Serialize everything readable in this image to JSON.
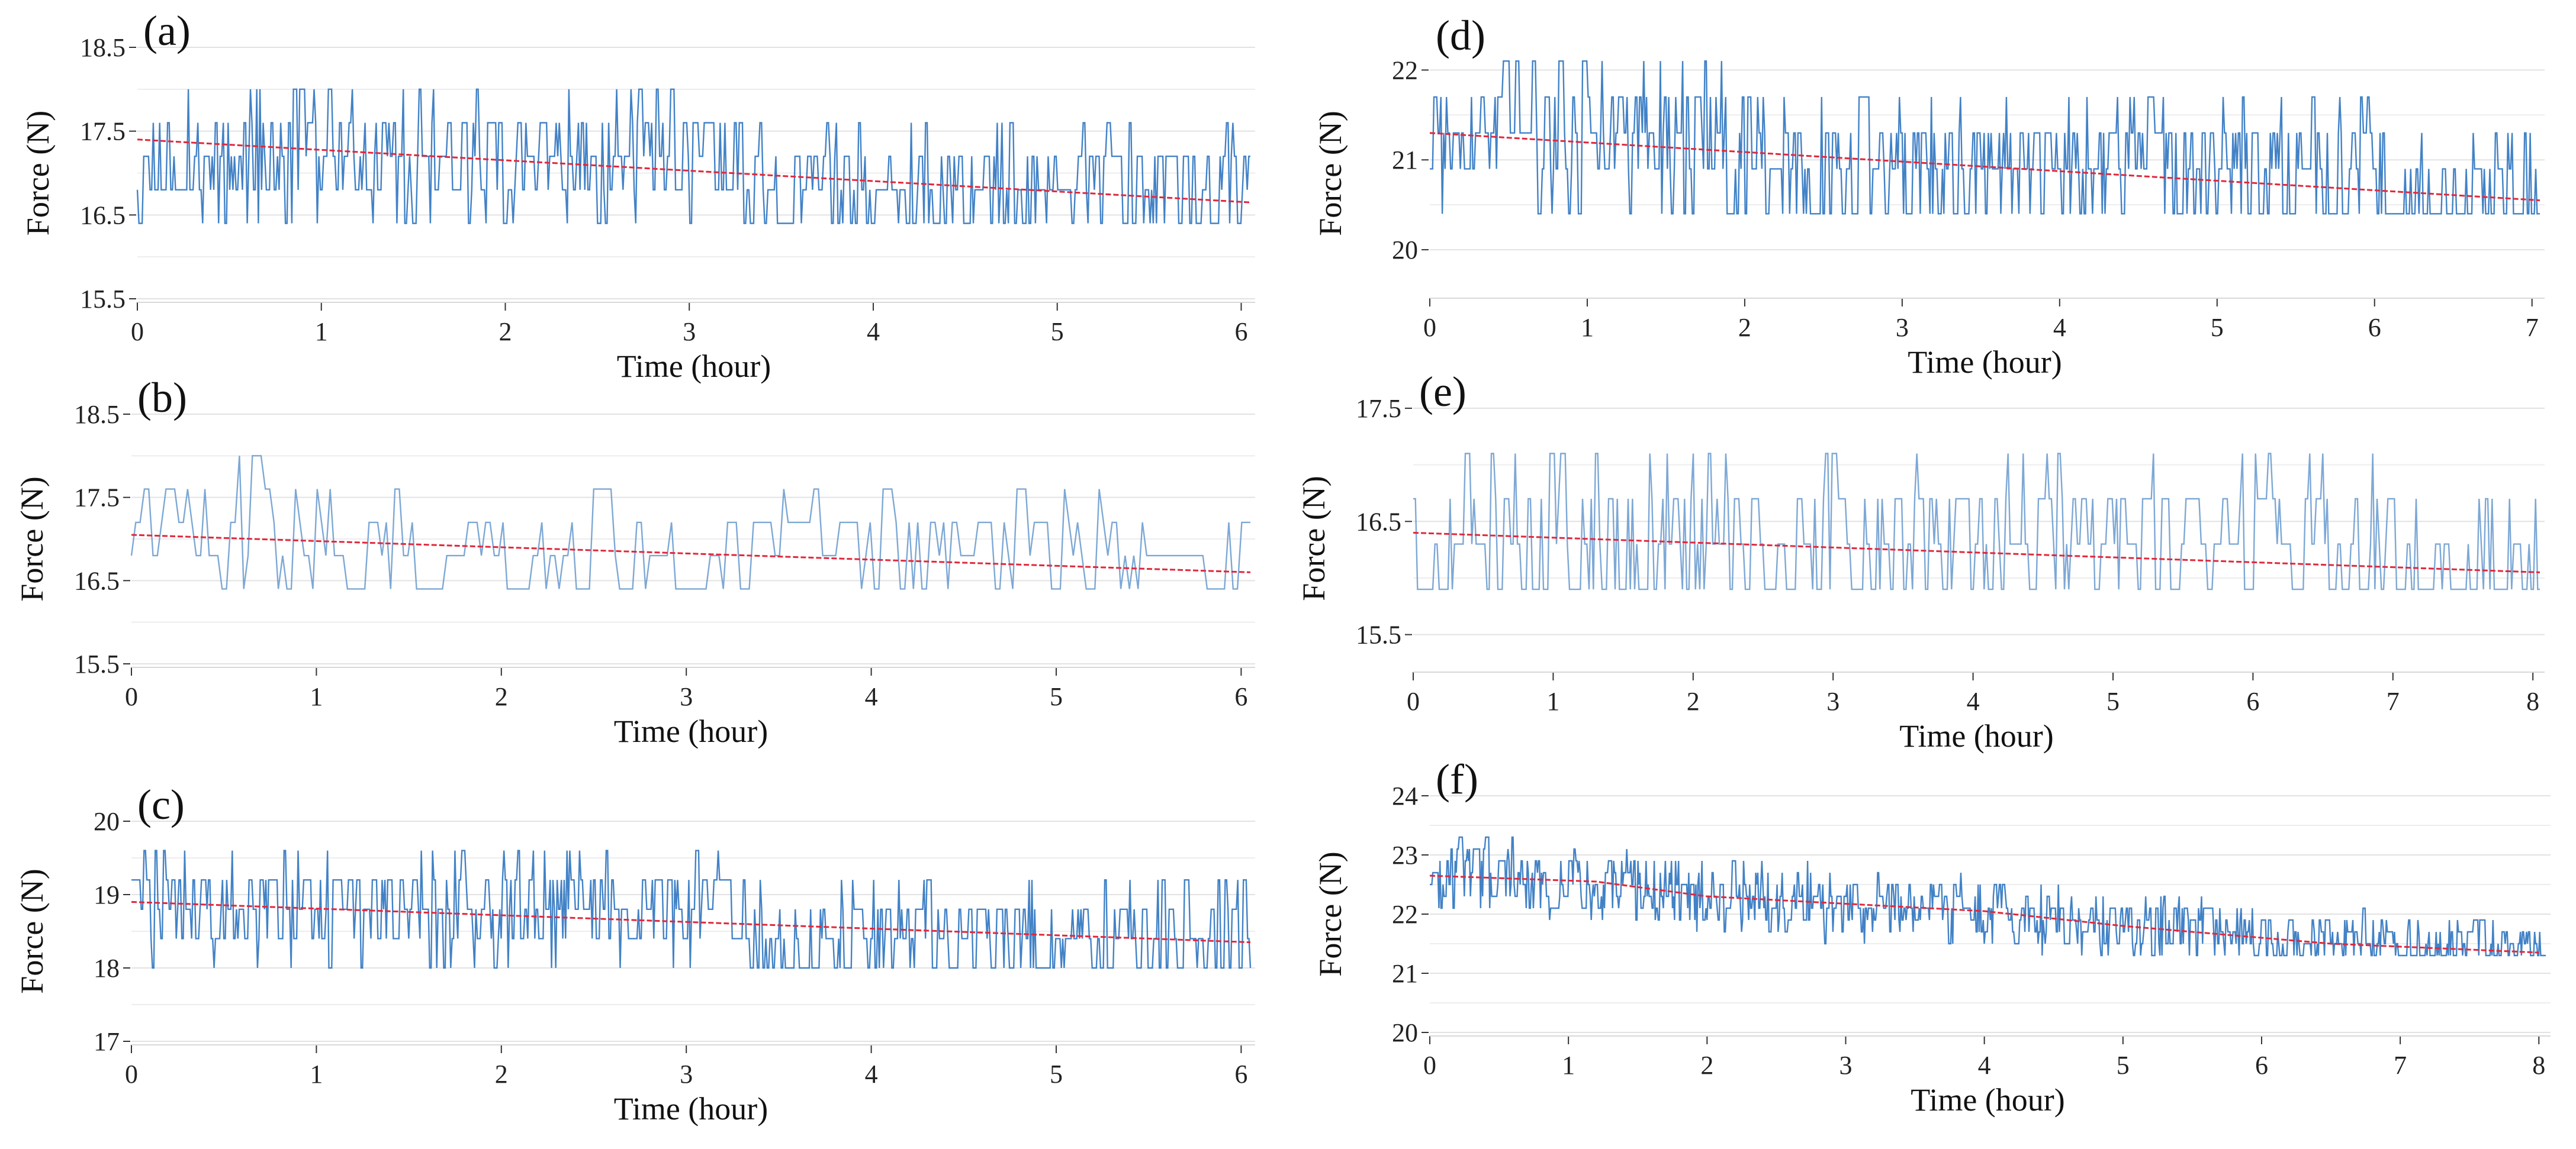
{
  "chart_data": [
    {
      "type": "line",
      "panel_label": "(a)",
      "xlabel": "Time (hour)",
      "ylabel": "Force (N)",
      "xlim": [
        0,
        6.05
      ],
      "ylim": [
        15.5,
        18.5
      ],
      "xticks": [
        0,
        1,
        2,
        3,
        4,
        5,
        6
      ],
      "yticks": [
        15.5,
        16.5,
        17.5,
        18.5
      ],
      "ytick_labels": [
        "15.5",
        "16.5",
        "17.5",
        "18.5"
      ],
      "grid": true,
      "series": [
        {
          "kind": "signal",
          "color": "#2e74c0",
          "noise": {
            "levels": [
              16.4,
              16.8,
              17.2,
              17.6,
              18.0
            ],
            "points": 700,
            "seed": 11
          }
        },
        {
          "kind": "trend",
          "color": "#e0283c",
          "x": [
            0,
            6.05
          ],
          "y": [
            17.4,
            16.65
          ]
        }
      ]
    },
    {
      "type": "line",
      "panel_label": "(b)",
      "xlabel": "Time (hour)",
      "ylabel": "Force (N)",
      "xlim": [
        0,
        6.05
      ],
      "ylim": [
        15.5,
        18.5
      ],
      "xticks": [
        0,
        1,
        2,
        3,
        4,
        5,
        6
      ],
      "yticks": [
        15.5,
        16.5,
        17.5,
        18.5
      ],
      "ytick_labels": [
        "15.5",
        "16.5",
        "17.5",
        "18.5"
      ],
      "grid": true,
      "series": [
        {
          "kind": "signal",
          "color": "#6f9fd0",
          "noise": {
            "levels": [
              16.4,
              16.8,
              17.2,
              17.6,
              18.0
            ],
            "points": 260,
            "seed": 23
          }
        },
        {
          "kind": "trend",
          "color": "#e0283c",
          "x": [
            0,
            6.05
          ],
          "y": [
            17.05,
            16.6
          ]
        }
      ]
    },
    {
      "type": "line",
      "panel_label": "(c)",
      "xlabel": "Time (hour)",
      "ylabel": "Force (N)",
      "xlim": [
        0,
        6.05
      ],
      "ylim": [
        17,
        20
      ],
      "xticks": [
        0,
        1,
        2,
        3,
        4,
        5,
        6
      ],
      "yticks": [
        17,
        18,
        19,
        20
      ],
      "ytick_labels": [
        "17",
        "18",
        "19",
        "20"
      ],
      "grid": true,
      "series": [
        {
          "kind": "signal",
          "color": "#2e74c0",
          "noise": {
            "levels": [
              18.0,
              18.4,
              18.8,
              19.2,
              19.6,
              20.0
            ],
            "points": 800,
            "seed": 37
          }
        },
        {
          "kind": "trend",
          "color": "#e0283c",
          "x": [
            0,
            6.05
          ],
          "y": [
            18.9,
            18.35
          ]
        }
      ]
    },
    {
      "type": "line",
      "panel_label": "(d)",
      "xlabel": "Time (hour)",
      "ylabel": "Force (N)",
      "xlim": [
        0,
        7.05
      ],
      "ylim": [
        19.5,
        22.2
      ],
      "xticks": [
        0,
        1,
        2,
        3,
        4,
        5,
        6,
        7
      ],
      "yticks": [
        20,
        21,
        22
      ],
      "ytick_labels": [
        "20",
        "21",
        "22"
      ],
      "grid": true,
      "series": [
        {
          "kind": "signal",
          "color": "#2e74c0",
          "noise": {
            "levels": [
              20.4,
              20.9,
              21.3,
              21.7,
              22.1
            ],
            "points": 800,
            "seed": 41
          }
        },
        {
          "kind": "trend",
          "color": "#e0283c",
          "x": [
            0,
            7.05
          ],
          "y": [
            21.3,
            20.55
          ]
        }
      ]
    },
    {
      "type": "line",
      "panel_label": "(e)",
      "xlabel": "Time (hour)",
      "ylabel": "Force (N)",
      "xlim": [
        0,
        8.05
      ],
      "ylim": [
        15.2,
        17.5
      ],
      "xticks": [
        0,
        1,
        2,
        3,
        4,
        5,
        6,
        7,
        8
      ],
      "yticks": [
        15.5,
        16.5,
        17.5
      ],
      "ytick_labels": [
        "15.5",
        "16.5",
        "17.5"
      ],
      "grid": true,
      "series": [
        {
          "kind": "signal",
          "color": "#6f9fd0",
          "noise": {
            "levels": [
              15.9,
              16.3,
              16.7,
              17.1
            ],
            "points": 520,
            "seed": 53
          }
        },
        {
          "kind": "trend",
          "color": "#e0283c",
          "x": [
            0,
            8.05
          ],
          "y": [
            16.4,
            16.05
          ]
        }
      ]
    },
    {
      "type": "line",
      "panel_label": "(f)",
      "xlabel": "Time (hour)",
      "ylabel": "Force (N)",
      "xlim": [
        0,
        8.05
      ],
      "ylim": [
        20,
        24
      ],
      "xticks": [
        0,
        1,
        2,
        3,
        4,
        5,
        6,
        7,
        8
      ],
      "yticks": [
        20,
        21,
        22,
        23,
        24
      ],
      "ytick_labels": [
        "20",
        "21",
        "22",
        "23",
        "24"
      ],
      "grid": true,
      "series": [
        {
          "kind": "signal",
          "color": "#2e74c0",
          "noise": {
            "levels": [
              21.3,
              21.5,
              21.7,
              21.9,
              22.1,
              22.3,
              22.5,
              22.7,
              22.9,
              23.1,
              23.3
            ],
            "points": 1100,
            "seed": 67,
            "track": [
              [
                0,
                22.65
              ],
              [
                1.2,
                22.55
              ],
              [
                2,
                22.3
              ],
              [
                4,
                22.05
              ],
              [
                5,
                21.8
              ],
              [
                6.5,
                21.5
              ],
              [
                8,
                21.35
              ]
            ]
          }
        },
        {
          "kind": "trend",
          "color": "#e0283c",
          "x": [
            0,
            1.2,
            2,
            4,
            5,
            6.5,
            8
          ],
          "y": [
            22.65,
            22.55,
            22.3,
            22.05,
            21.8,
            21.5,
            21.35
          ]
        }
      ]
    }
  ]
}
